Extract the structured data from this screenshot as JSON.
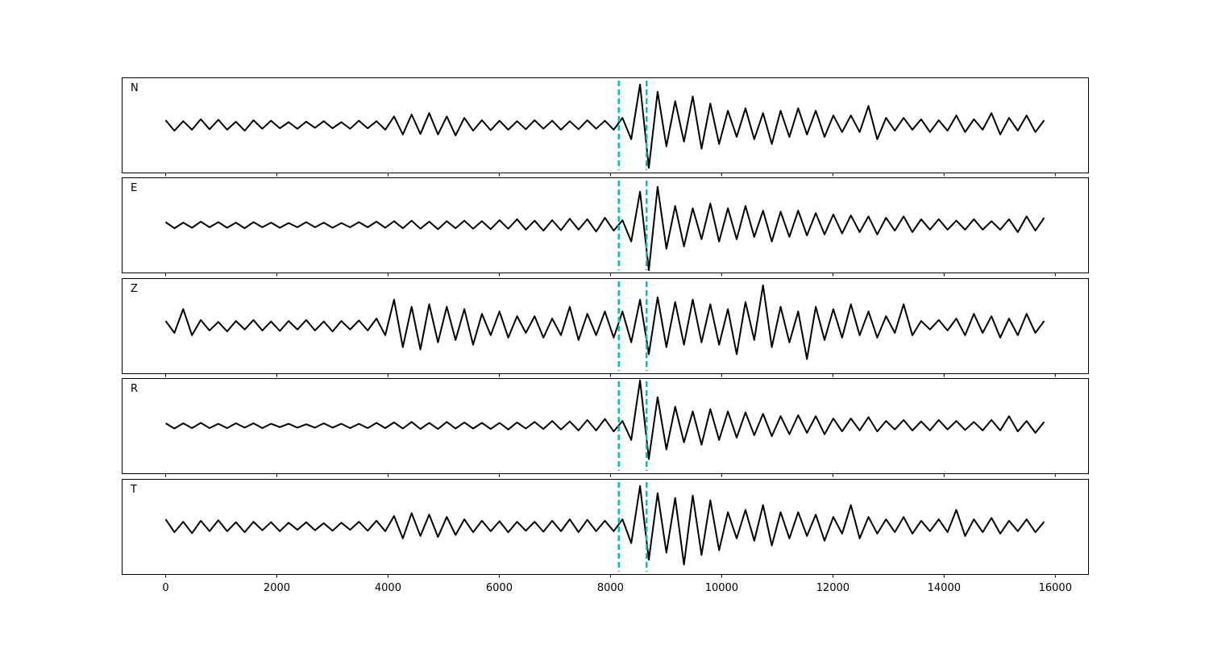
{
  "chart_data": {
    "type": "line",
    "title": "",
    "xlabel": "",
    "ylabel": "",
    "xlim": [
      -790,
      16590
    ],
    "ylim": [
      -1,
      1
    ],
    "grid": false,
    "x_start": 0,
    "x_end": 15800,
    "xticks": [
      0,
      2000,
      4000,
      6000,
      8000,
      10000,
      12000,
      14000,
      16000
    ],
    "xtick_labels": [
      "0",
      "2000",
      "4000",
      "6000",
      "8000",
      "10000",
      "12000",
      "14000",
      "16000"
    ],
    "trace_color": "#000000",
    "pick_color": "#00bfbf",
    "picks": [
      8150,
      8650
    ],
    "panels": [
      {
        "label": "N",
        "values": [
          0.1,
          -0.12,
          0.08,
          -0.1,
          0.12,
          -0.09,
          0.11,
          -0.1,
          0.07,
          -0.12,
          0.1,
          -0.08,
          0.09,
          -0.07,
          0.06,
          -0.08,
          0.07,
          -0.06,
          0.08,
          -0.07,
          0.06,
          -0.08,
          0.09,
          -0.07,
          0.08,
          -0.1,
          0.18,
          -0.2,
          0.22,
          -0.19,
          0.25,
          -0.2,
          0.18,
          -0.22,
          0.15,
          -0.12,
          0.1,
          -0.11,
          0.09,
          -0.1,
          0.08,
          -0.09,
          0.1,
          -0.08,
          0.09,
          -0.1,
          0.08,
          -0.09,
          0.1,
          -0.08,
          0.09,
          -0.1,
          0.15,
          -0.3,
          0.85,
          -0.9,
          0.7,
          -0.45,
          0.5,
          -0.35,
          0.6,
          -0.5,
          0.45,
          -0.4,
          0.3,
          -0.25,
          0.35,
          -0.3,
          0.25,
          -0.4,
          0.3,
          -0.25,
          0.35,
          -0.2,
          0.3,
          -0.25,
          0.2,
          -0.15,
          0.2,
          -0.15,
          0.4,
          -0.3,
          0.15,
          -0.12,
          0.15,
          -0.1,
          0.12,
          -0.15,
          0.1,
          -0.12,
          0.2,
          -0.15,
          0.12,
          -0.1,
          0.25,
          -0.2,
          0.15,
          -0.12,
          0.2,
          -0.15,
          0.1
        ]
      },
      {
        "label": "E",
        "values": [
          0.06,
          -0.07,
          0.05,
          -0.06,
          0.07,
          -0.05,
          0.06,
          -0.06,
          0.05,
          -0.07,
          0.06,
          -0.05,
          0.05,
          -0.06,
          0.04,
          -0.05,
          0.06,
          -0.05,
          0.05,
          -0.06,
          0.04,
          -0.05,
          0.06,
          -0.05,
          0.07,
          -0.06,
          0.08,
          -0.07,
          0.09,
          -0.08,
          0.07,
          -0.09,
          0.08,
          -0.07,
          0.09,
          -0.08,
          0.08,
          -0.09,
          0.1,
          -0.08,
          0.12,
          -0.1,
          0.09,
          -0.12,
          0.1,
          -0.11,
          0.13,
          -0.1,
          0.12,
          -0.14,
          0.15,
          -0.12,
          0.1,
          -0.35,
          0.7,
          -0.95,
          0.8,
          -0.5,
          0.4,
          -0.45,
          0.35,
          -0.3,
          0.45,
          -0.35,
          0.35,
          -0.3,
          0.4,
          -0.25,
          0.3,
          -0.35,
          0.28,
          -0.25,
          0.3,
          -0.22,
          0.25,
          -0.2,
          0.22,
          -0.18,
          0.2,
          -0.15,
          0.18,
          -0.2,
          0.15,
          -0.12,
          0.18,
          -0.15,
          0.12,
          -0.1,
          0.12,
          -0.1,
          0.09,
          -0.1,
          0.12,
          -0.1,
          0.08,
          -0.1,
          0.12,
          -0.15,
          0.18,
          -0.12,
          0.15
        ]
      },
      {
        "label": "Z",
        "values": [
          0.1,
          -0.15,
          0.35,
          -0.2,
          0.12,
          -0.1,
          0.08,
          -0.12,
          0.1,
          -0.08,
          0.12,
          -0.1,
          0.09,
          -0.11,
          0.1,
          -0.08,
          0.12,
          -0.1,
          0.09,
          -0.12,
          0.1,
          -0.08,
          0.11,
          -0.1,
          0.15,
          -0.2,
          0.55,
          -0.45,
          0.4,
          -0.5,
          0.45,
          -0.35,
          0.4,
          -0.3,
          0.35,
          -0.4,
          0.25,
          -0.2,
          0.3,
          -0.25,
          0.2,
          -0.15,
          0.2,
          -0.25,
          0.15,
          -0.2,
          0.4,
          -0.3,
          0.25,
          -0.2,
          0.3,
          -0.25,
          0.3,
          -0.35,
          0.55,
          -0.6,
          0.6,
          -0.45,
          0.5,
          -0.4,
          0.55,
          -0.35,
          0.45,
          -0.4,
          0.35,
          -0.6,
          0.5,
          -0.3,
          0.85,
          -0.45,
          0.4,
          -0.35,
          0.3,
          -0.7,
          0.4,
          -0.3,
          0.35,
          -0.25,
          0.45,
          -0.2,
          0.3,
          -0.25,
          0.2,
          -0.15,
          0.45,
          -0.2,
          0.1,
          -0.08,
          0.12,
          -0.1,
          0.15,
          -0.2,
          0.25,
          -0.15,
          0.2,
          -0.25,
          0.15,
          -0.2,
          0.25,
          -0.15,
          0.1
        ]
      },
      {
        "label": "R",
        "values": [
          0.05,
          -0.06,
          0.05,
          -0.05,
          0.06,
          -0.05,
          0.04,
          -0.05,
          0.05,
          -0.04,
          0.05,
          -0.05,
          0.04,
          -0.03,
          0.04,
          -0.04,
          0.03,
          -0.04,
          0.05,
          -0.04,
          0.04,
          -0.05,
          0.04,
          -0.05,
          0.06,
          -0.05,
          0.07,
          -0.06,
          0.08,
          -0.07,
          0.06,
          -0.07,
          0.08,
          -0.06,
          0.07,
          -0.06,
          0.06,
          -0.07,
          0.06,
          -0.08,
          0.07,
          -0.06,
          0.08,
          -0.07,
          0.1,
          -0.08,
          0.09,
          -0.1,
          0.12,
          -0.1,
          0.14,
          -0.12,
          0.1,
          -0.3,
          0.95,
          -0.7,
          0.6,
          -0.5,
          0.4,
          -0.35,
          0.3,
          -0.4,
          0.35,
          -0.3,
          0.3,
          -0.25,
          0.28,
          -0.2,
          0.25,
          -0.22,
          0.2,
          -0.18,
          0.22,
          -0.15,
          0.2,
          -0.18,
          0.15,
          -0.12,
          0.15,
          -0.1,
          0.18,
          -0.12,
          0.1,
          -0.08,
          0.12,
          -0.1,
          0.09,
          -0.1,
          0.12,
          -0.08,
          0.1,
          -0.09,
          0.08,
          -0.1,
          0.12,
          -0.1,
          0.2,
          -0.12,
          0.1,
          -0.15,
          0.08
        ]
      },
      {
        "label": "T",
        "values": [
          0.15,
          -0.12,
          0.1,
          -0.14,
          0.12,
          -0.1,
          0.13,
          -0.1,
          0.09,
          -0.12,
          0.1,
          -0.08,
          0.09,
          -0.1,
          0.08,
          -0.07,
          0.09,
          -0.08,
          0.07,
          -0.09,
          0.08,
          -0.07,
          0.1,
          -0.09,
          0.12,
          -0.1,
          0.22,
          -0.25,
          0.28,
          -0.2,
          0.25,
          -0.22,
          0.2,
          -0.18,
          0.15,
          -0.12,
          0.12,
          -0.1,
          0.11,
          -0.12,
          0.1,
          -0.09,
          0.1,
          -0.11,
          0.12,
          -0.1,
          0.15,
          -0.12,
          0.14,
          -0.1,
          0.12,
          -0.1,
          0.15,
          -0.35,
          0.85,
          -0.7,
          0.7,
          -0.55,
          0.6,
          -0.8,
          0.65,
          -0.6,
          0.55,
          -0.5,
          0.3,
          -0.25,
          0.35,
          -0.3,
          0.45,
          -0.4,
          0.3,
          -0.25,
          0.3,
          -0.2,
          0.25,
          -0.3,
          0.2,
          -0.15,
          0.45,
          -0.25,
          0.2,
          -0.15,
          0.15,
          -0.12,
          0.2,
          -0.15,
          0.12,
          -0.1,
          0.15,
          -0.12,
          0.35,
          -0.2,
          0.15,
          -0.12,
          0.18,
          -0.15,
          0.12,
          -0.1,
          0.15,
          -0.12,
          0.1
        ]
      }
    ]
  }
}
